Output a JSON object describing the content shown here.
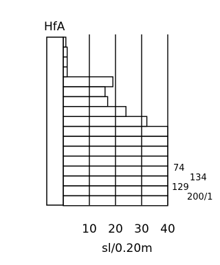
{
  "chart_data": {
    "type": "bar",
    "orientation": "horizontal",
    "title": "HfA",
    "xlabel": "sl/0.20m",
    "xlim": [
      0,
      40
    ],
    "x_ticks": [
      10,
      20,
      30,
      40
    ],
    "grid": "vertical lines at ticks",
    "values": [
      1,
      1.5,
      1.5,
      1.5,
      19,
      16,
      17,
      24,
      32,
      40,
      40,
      40,
      40,
      40,
      40,
      40,
      40
    ],
    "overflow_counts": [
      {
        "row": 13,
        "label": "74"
      },
      {
        "row": 14,
        "label": "134"
      },
      {
        "row": 15,
        "label": "129"
      },
      {
        "row": 16,
        "label": "200/1"
      }
    ]
  },
  "colors": {
    "stroke": "#000000",
    "background": "#ffffff"
  }
}
